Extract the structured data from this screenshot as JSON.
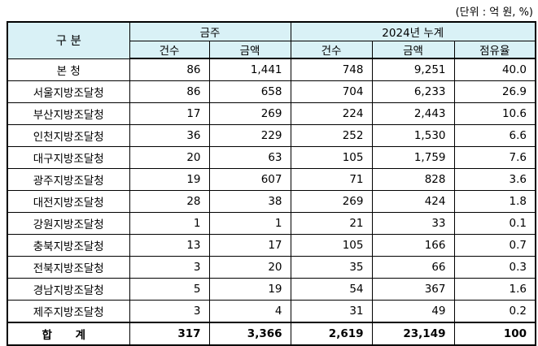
{
  "unit_note": "(단위 : 억 원, %)",
  "header": {
    "division": "구 분",
    "group_month": "금주",
    "group_cumulative": "2024년 누계",
    "count": "건수",
    "amount": "금액",
    "share": "점유율"
  },
  "rows": [
    {
      "name": "본 청",
      "w_count": "86",
      "w_amount": "1,441",
      "c_count": "748",
      "c_amount": "9,251",
      "share": "40.0"
    },
    {
      "name": "서울지방조달청",
      "w_count": "86",
      "w_amount": "658",
      "c_count": "704",
      "c_amount": "6,233",
      "share": "26.9"
    },
    {
      "name": "부산지방조달청",
      "w_count": "17",
      "w_amount": "269",
      "c_count": "224",
      "c_amount": "2,443",
      "share": "10.6"
    },
    {
      "name": "인천지방조달청",
      "w_count": "36",
      "w_amount": "229",
      "c_count": "252",
      "c_amount": "1,530",
      "share": "6.6"
    },
    {
      "name": "대구지방조달청",
      "w_count": "20",
      "w_amount": "63",
      "c_count": "105",
      "c_amount": "1,759",
      "share": "7.6"
    },
    {
      "name": "광주지방조달청",
      "w_count": "19",
      "w_amount": "607",
      "c_count": "71",
      "c_amount": "828",
      "share": "3.6"
    },
    {
      "name": "대전지방조달청",
      "w_count": "28",
      "w_amount": "38",
      "c_count": "269",
      "c_amount": "424",
      "share": "1.8"
    },
    {
      "name": "강원지방조달청",
      "w_count": "1",
      "w_amount": "1",
      "c_count": "21",
      "c_amount": "33",
      "share": "0.1"
    },
    {
      "name": "충북지방조달청",
      "w_count": "13",
      "w_amount": "17",
      "c_count": "105",
      "c_amount": "166",
      "share": "0.7"
    },
    {
      "name": "전북지방조달청",
      "w_count": "3",
      "w_amount": "20",
      "c_count": "35",
      "c_amount": "66",
      "share": "0.3"
    },
    {
      "name": "경남지방조달청",
      "w_count": "5",
      "w_amount": "19",
      "c_count": "54",
      "c_amount": "367",
      "share": "1.6"
    },
    {
      "name": "제주지방조달청",
      "w_count": "3",
      "w_amount": "4",
      "c_count": "31",
      "c_amount": "49",
      "share": "0.2"
    }
  ],
  "total": {
    "name": "합 계",
    "w_count": "317",
    "w_amount": "3,366",
    "c_count": "2,619",
    "c_amount": "23,149",
    "share": "100"
  }
}
